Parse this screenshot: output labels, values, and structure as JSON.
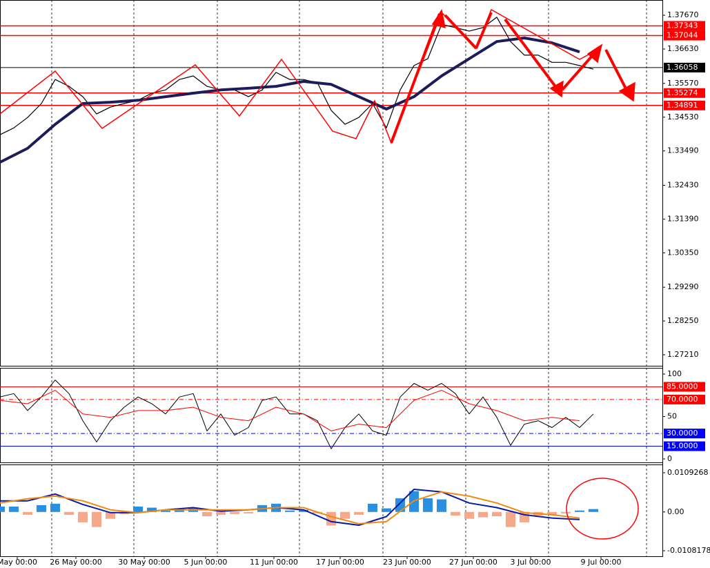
{
  "chart_data": [
    {
      "type": "line",
      "xlim": [
        0,
        96
      ],
      "xticks": [
        {
          "value": 2.5,
          "label": "May 00:00"
        },
        {
          "value": 11,
          "label": "26 May 00:00"
        },
        {
          "value": 20.9,
          "label": "30 May 00:00"
        },
        {
          "value": 29.8,
          "label": "5 Jun 00:00"
        },
        {
          "value": 39.7,
          "label": "11 Jun 00:00"
        },
        {
          "value": 49.3,
          "label": "17 Jun 00:00"
        },
        {
          "value": 59,
          "label": "23 Jun 00:00"
        },
        {
          "value": 68.6,
          "label": "27 Jun 00:00"
        },
        {
          "value": 76.9,
          "label": "3 Jul 00:00"
        },
        {
          "value": 87.1,
          "label": "9 Jul 00:00"
        }
      ],
      "ylim": [
        1.2687,
        1.3814
      ],
      "yticks": [
        {
          "value": 1.3767,
          "label": "1.37670"
        },
        {
          "value": 1.3663,
          "label": "1.36630"
        },
        {
          "value": 1.3557,
          "label": "1.35570"
        },
        {
          "value": 1.3453,
          "label": "1.34530"
        },
        {
          "value": 1.3349,
          "label": "1.33490"
        },
        {
          "value": 1.3243,
          "label": "1.32430"
        },
        {
          "value": 1.3139,
          "label": "1.31390"
        },
        {
          "value": 1.3035,
          "label": "1.30350"
        },
        {
          "value": 1.2929,
          "label": "1.29290"
        },
        {
          "value": 1.2825,
          "label": "1.28250"
        },
        {
          "value": 1.2721,
          "label": "1.27210"
        }
      ],
      "levels": [
        {
          "value": 1.37343,
          "color": "#ff0000"
        },
        {
          "value": 1.37044,
          "color": "#ff0000"
        },
        {
          "value": 1.36058,
          "color": "#000000"
        },
        {
          "value": 1.35274,
          "color": "#ff0000"
        },
        {
          "value": 1.34891,
          "color": "#ff0000"
        }
      ],
      "series": [
        {
          "color": "#000000",
          "width": 1.2,
          "x": [
            0,
            2,
            4,
            6,
            8,
            10,
            12,
            14,
            16,
            18,
            20,
            22,
            24,
            26,
            28,
            30,
            32,
            34,
            36,
            38,
            40,
            42,
            44,
            46,
            48,
            50,
            52,
            54,
            56,
            58,
            60,
            62,
            64,
            66,
            68,
            70,
            72,
            74,
            76,
            78,
            80,
            82,
            84,
            86
          ],
          "values": [
            1.3399,
            1.342,
            1.3452,
            1.3495,
            1.3569,
            1.3548,
            1.3516,
            1.3463,
            1.3484,
            1.3495,
            1.3505,
            1.3527,
            1.3537,
            1.3569,
            1.358,
            1.3548,
            1.3537,
            1.3537,
            1.3516,
            1.3537,
            1.3591,
            1.3569,
            1.3569,
            1.3559,
            1.3474,
            1.3431,
            1.3452,
            1.3495,
            1.342,
            1.3537,
            1.3612,
            1.3633,
            1.3739,
            1.3729,
            1.3718,
            1.3729,
            1.3761,
            1.3686,
            1.3644,
            1.3644,
            1.3622,
            1.3622,
            1.3612,
            1.3601
          ]
        },
        {
          "color": "#1c1c5a",
          "width": 4,
          "x": [
            0,
            4,
            8,
            12,
            16,
            20,
            24,
            28,
            32,
            36,
            40,
            44,
            48,
            52,
            56,
            60,
            64,
            68,
            72,
            76,
            80,
            84
          ],
          "values": [
            1.3314,
            1.3357,
            1.3431,
            1.3495,
            1.3499,
            1.3505,
            1.3516,
            1.3527,
            1.3537,
            1.3542,
            1.3548,
            1.3563,
            1.3554,
            1.3516,
            1.3478,
            1.3516,
            1.358,
            1.3633,
            1.3686,
            1.3697,
            1.3682,
            1.3654
          ]
        }
      ]
    },
    {
      "type": "line",
      "ylim": [
        0,
        100
      ],
      "yticks": [
        100,
        50,
        0
      ],
      "levels": [
        {
          "value": 85,
          "label": "85.0000",
          "color": "#ff0000",
          "bg": "#ff0000",
          "dash": ""
        },
        {
          "value": 70,
          "label": "70.0000",
          "color": "#ff0000",
          "bg": "#ff0000",
          "dash": "6 3 1 3"
        },
        {
          "value": 30,
          "label": "30.0000",
          "color": "#0000ff",
          "bg": "#0000ff",
          "dash": "6 3 1 3"
        },
        {
          "value": 15,
          "label": "15.0000",
          "color": "#0000ff",
          "bg": "#0000ff",
          "dash": ""
        }
      ],
      "series": [
        {
          "color": "#000000",
          "width": 1,
          "x": [
            0,
            2,
            4,
            6,
            8,
            10,
            12,
            14,
            16,
            18,
            20,
            22,
            24,
            26,
            28,
            30,
            32,
            34,
            36,
            38,
            40,
            42,
            44,
            46,
            48,
            50,
            52,
            54,
            56,
            58,
            60,
            62,
            64,
            66,
            68,
            70,
            72,
            74,
            76,
            78,
            80,
            82,
            84,
            86
          ],
          "values": [
            73,
            77,
            57,
            73,
            93,
            77,
            45,
            20,
            45,
            61,
            73,
            65,
            53,
            73,
            77,
            33,
            53,
            28,
            37,
            69,
            73,
            53,
            53,
            45,
            12,
            37,
            53,
            33,
            28,
            73,
            89,
            81,
            89,
            77,
            53,
            73,
            49,
            16,
            41,
            45,
            37,
            49,
            37,
            53
          ]
        },
        {
          "color": "#ff0000",
          "width": 1,
          "x": [
            0,
            4,
            8,
            12,
            16,
            20,
            24,
            28,
            32,
            36,
            40,
            44,
            48,
            52,
            56,
            60,
            64,
            68,
            72,
            76,
            80,
            84
          ],
          "values": [
            69,
            65,
            81,
            53,
            49,
            57,
            57,
            61,
            49,
            45,
            61,
            53,
            33,
            41,
            37,
            69,
            81,
            65,
            57,
            45,
            49,
            45
          ]
        }
      ]
    },
    {
      "type": "macd",
      "ylim": [
        -0.0108178,
        0.0109268
      ],
      "yticks": [
        0.0109268,
        {
          "value": 0,
          "label": "0.00"
        },
        -0.0108178
      ],
      "up_color": "#2b8fe0",
      "down_color": "#f6a98a",
      "histogram": {
        "x": [
          0,
          2,
          4,
          6,
          8,
          10,
          12,
          14,
          16,
          18,
          20,
          22,
          24,
          26,
          28,
          30,
          32,
          34,
          36,
          38,
          40,
          42,
          44,
          46,
          48,
          50,
          52,
          54,
          56,
          58,
          60,
          62,
          64,
          66,
          68,
          70,
          72,
          74,
          76,
          78,
          80,
          82,
          84,
          86
        ],
        "values": [
          0.0015,
          0.0015,
          -0.0008,
          0.0019,
          0.0023,
          -0.0008,
          -0.0029,
          -0.0042,
          -0.0019,
          -0.0006,
          0.0015,
          0.0012,
          0.0004,
          0.001,
          0.0012,
          -0.0012,
          -0.0008,
          -0.0006,
          -0.0004,
          0.0019,
          0.0023,
          0.0004,
          0.0006,
          -0.0004,
          -0.0038,
          -0.0019,
          -0.0008,
          0.0023,
          0.001,
          0.0038,
          0.0058,
          0.0038,
          0.0035,
          -0.001,
          -0.0019,
          -0.0015,
          -0.0012,
          -0.0042,
          -0.0029,
          -0.001,
          -0.0008,
          -0.0004,
          0.0004,
          0.0008
        ]
      },
      "series": [
        {
          "color": "#0a1aa8",
          "width": 2,
          "x": [
            0,
            4,
            8,
            12,
            16,
            20,
            24,
            28,
            32,
            36,
            40,
            44,
            48,
            52,
            56,
            60,
            64,
            68,
            72,
            76,
            80,
            84
          ],
          "values": [
            0.0031,
            0.0031,
            0.005,
            0.0021,
            -0.0002,
            -0.0002,
            0.0006,
            0.0012,
            0.0002,
            0.0006,
            0.0012,
            0.0006,
            -0.0027,
            -0.0037,
            -0.0013,
            0.0063,
            0.0056,
            0.0025,
            0.0012,
            -0.0008,
            -0.0017,
            -0.0021
          ]
        },
        {
          "color": "#f08a10",
          "width": 2,
          "x": [
            0,
            4,
            8,
            12,
            16,
            20,
            24,
            28,
            32,
            36,
            40,
            44,
            48,
            52,
            56,
            60,
            64,
            68,
            72,
            76,
            80,
            84
          ],
          "values": [
            0.0025,
            0.0037,
            0.0044,
            0.0031,
            0.0006,
            -0.0002,
            0.0006,
            0.0006,
            0.0006,
            0.0006,
            0.0012,
            0.0012,
            -0.0013,
            -0.0033,
            -0.0027,
            0.0031,
            0.0056,
            0.0044,
            0.0025,
            -0.0002,
            -0.0008,
            -0.0017
          ]
        }
      ]
    }
  ]
}
